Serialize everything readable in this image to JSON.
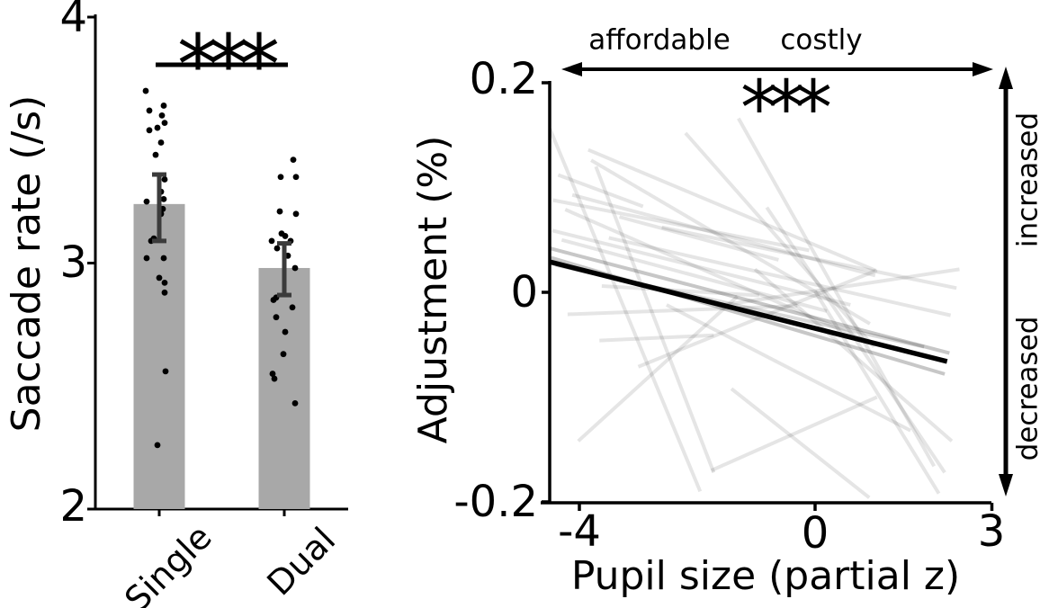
{
  "chart_data": [
    {
      "type": "bar",
      "ylabel": "Saccade rate (/s)",
      "categories": [
        "Single",
        "Dual"
      ],
      "values": [
        3.24,
        2.98
      ],
      "error_low": [
        3.09,
        2.87
      ],
      "error_high": [
        3.36,
        3.08
      ],
      "ylim": [
        2,
        4
      ],
      "yticks": [
        "4",
        "3",
        "2"
      ],
      "significance": "***",
      "bar_color": "#a8a8a8",
      "error_color": "#3b3b3b",
      "dot_color": "#000000",
      "points": [
        [
          [
            -15,
            3.7
          ],
          [
            5,
            3.64
          ],
          [
            -11,
            3.62
          ],
          [
            3,
            3.6
          ],
          [
            6,
            3.57
          ],
          [
            -11,
            3.54
          ],
          [
            -2,
            3.55
          ],
          [
            2,
            3.49
          ],
          [
            -4,
            3.44
          ],
          [
            6,
            3.34
          ],
          [
            2,
            3.29
          ],
          [
            5,
            3.26
          ],
          [
            -14,
            3.25
          ],
          [
            4,
            3.22
          ],
          [
            2,
            3.2
          ],
          [
            -6,
            3.1
          ],
          [
            -9,
            3.09
          ],
          [
            -14,
            3.02
          ],
          [
            5,
            3.02
          ],
          [
            0,
            2.94
          ],
          [
            6,
            2.92
          ],
          [
            6,
            2.88
          ],
          [
            7,
            2.56
          ],
          [
            -2,
            2.26
          ]
        ],
        [
          [
            10,
            3.42
          ],
          [
            -4,
            3.35
          ],
          [
            13,
            3.35
          ],
          [
            -5,
            3.21
          ],
          [
            13,
            3.2
          ],
          [
            -3,
            3.12
          ],
          [
            1,
            3.11
          ],
          [
            -14,
            3.09
          ],
          [
            7,
            3.09
          ],
          [
            -8,
            3.06
          ],
          [
            4,
            3.03
          ],
          [
            12,
            2.98
          ],
          [
            -9,
            2.86
          ],
          [
            -12,
            2.85
          ],
          [
            9,
            2.82
          ],
          [
            -9,
            2.78
          ],
          [
            1,
            2.72
          ],
          [
            -1,
            2.63
          ],
          [
            -13,
            2.55
          ],
          [
            -11,
            2.53
          ],
          [
            12,
            2.43
          ]
        ]
      ]
    },
    {
      "type": "line",
      "xlabel": "Pupil size (partial z)",
      "ylabel": "Adjustment (%)",
      "xlim": [
        -4.6,
        3.0
      ],
      "ylim": [
        -0.2,
        0.2
      ],
      "xticks": [
        "-4",
        "0",
        "3"
      ],
      "yticks": [
        "0.2",
        "0",
        "-0.2"
      ],
      "significance": "***",
      "annotations": {
        "x_low_label": "affordable",
        "x_high_label": "costly",
        "y_high_label": "increased",
        "y_low_label": "decreased"
      },
      "mean_line": {
        "x1": -4.5,
        "y1": 0.029,
        "x2": 2.24,
        "y2": -0.066
      },
      "line_color": "#000000",
      "subject_line_color": "#000000",
      "subject_lines": [
        [
          -4.5,
          0.156,
          -1.95,
          -0.19
        ],
        [
          -3.72,
          0.12,
          -1.72,
          -0.172
        ],
        [
          -3.85,
          0.136,
          1.02,
          0.021
        ],
        [
          -3.8,
          0.126,
          0.93,
          -0.03
        ],
        [
          -4.12,
          0.093,
          1.02,
          0.016
        ],
        [
          -4.24,
          0.079,
          1.02,
          -0.05
        ],
        [
          -4.46,
          0.059,
          0.6,
          -0.012
        ],
        [
          -4.5,
          0.042,
          2.28,
          -0.058,
          0.22
        ],
        [
          -4.48,
          0.033,
          2.2,
          -0.078,
          0.22
        ],
        [
          -4.4,
          0.026,
          1.85,
          -0.052,
          0.15
        ],
        [
          -4.3,
          0.05,
          0.2,
          -0.018
        ],
        [
          -3.62,
          0.006,
          -0.95,
          -0.003
        ],
        [
          -4.2,
          -0.021,
          -0.3,
          -0.013
        ],
        [
          -3.66,
          -0.046,
          -1.72,
          -0.041
        ],
        [
          -4.02,
          -0.142,
          -1.32,
          -0.004
        ],
        [
          -3.0,
          -0.071,
          1.05,
          0.021
        ],
        [
          -1.76,
          -0.17,
          1.05,
          -0.1
        ],
        [
          -2.6,
          0.062,
          2.4,
          0.004
        ],
        [
          -1.55,
          -0.012,
          2.45,
          0.022
        ],
        [
          -2.2,
          0.152,
          1.0,
          -0.052
        ],
        [
          -1.3,
          0.166,
          2.02,
          -0.166
        ],
        [
          -0.82,
          0.081,
          2.2,
          -0.172
        ],
        [
          -1.02,
          0.022,
          2.32,
          -0.142
        ],
        [
          0.0,
          0.001,
          2.1,
          -0.192
        ],
        [
          -3.32,
          0.072,
          -0.62,
          0.031
        ],
        [
          -4.36,
          0.112,
          -2.92,
          0.082
        ],
        [
          -1.42,
          -0.092,
          0.92,
          -0.196
        ],
        [
          -2.52,
          -0.012,
          1.62,
          -0.132
        ],
        [
          -4.45,
          0.088,
          -0.1,
          0.04
        ],
        [
          -3.5,
          0.052,
          2.3,
          -0.022
        ]
      ]
    }
  ]
}
